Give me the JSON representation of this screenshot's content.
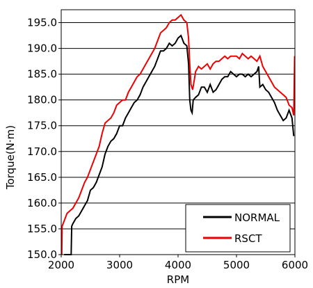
{
  "chart_data": {
    "type": "line",
    "title": "",
    "xlabel": "RPM",
    "ylabel": "Torque(N·m)",
    "xlim": [
      2000,
      6000
    ],
    "ylim": [
      150,
      197.5
    ],
    "x_ticks": [
      2000,
      3000,
      4000,
      5000,
      6000
    ],
    "y_ticks": [
      150.0,
      155.0,
      160.0,
      165.0,
      170.0,
      175.0,
      180.0,
      185.0,
      190.0,
      195.0
    ],
    "y_tick_labels": [
      "150.0",
      "155.0",
      "160.0",
      "165.0",
      "170.0",
      "175.0",
      "180.0",
      "185.0",
      "190.0",
      "195.0"
    ],
    "x_tick_labels": [
      "2000",
      "3000",
      "4000",
      "5000",
      "6000"
    ],
    "grid": "horizontal",
    "legend_position": "bottom-right",
    "series": [
      {
        "name": "NORMAL",
        "color": "#000000",
        "points": [
          [
            2050,
            150.0
          ],
          [
            2100,
            150.0
          ],
          [
            2150,
            150.0
          ],
          [
            2170,
            150.0
          ],
          [
            2180,
            155.5
          ],
          [
            2200,
            156.0
          ],
          [
            2250,
            157.0
          ],
          [
            2300,
            157.5
          ],
          [
            2350,
            158.5
          ],
          [
            2400,
            159.5
          ],
          [
            2450,
            160.5
          ],
          [
            2500,
            162.5
          ],
          [
            2550,
            163.0
          ],
          [
            2600,
            164.0
          ],
          [
            2650,
            165.5
          ],
          [
            2700,
            167.0
          ],
          [
            2750,
            169.5
          ],
          [
            2800,
            171.0
          ],
          [
            2850,
            172.0
          ],
          [
            2900,
            172.5
          ],
          [
            2950,
            173.5
          ],
          [
            3000,
            175.0
          ],
          [
            3050,
            175.0
          ],
          [
            3100,
            176.5
          ],
          [
            3150,
            177.5
          ],
          [
            3200,
            178.5
          ],
          [
            3250,
            179.5
          ],
          [
            3300,
            180.0
          ],
          [
            3350,
            181.0
          ],
          [
            3400,
            182.5
          ],
          [
            3450,
            183.5
          ],
          [
            3500,
            184.5
          ],
          [
            3550,
            185.5
          ],
          [
            3600,
            186.5
          ],
          [
            3650,
            188.0
          ],
          [
            3700,
            189.5
          ],
          [
            3750,
            189.5
          ],
          [
            3800,
            190.0
          ],
          [
            3850,
            191.0
          ],
          [
            3900,
            190.5
          ],
          [
            3950,
            191.0
          ],
          [
            4000,
            192.0
          ],
          [
            4050,
            192.5
          ],
          [
            4100,
            191.0
          ],
          [
            4150,
            190.5
          ],
          [
            4180,
            187.0
          ],
          [
            4200,
            180.0
          ],
          [
            4220,
            178.0
          ],
          [
            4240,
            177.5
          ],
          [
            4260,
            180.0
          ],
          [
            4300,
            180.5
          ],
          [
            4350,
            181.0
          ],
          [
            4400,
            182.5
          ],
          [
            4450,
            182.5
          ],
          [
            4500,
            181.5
          ],
          [
            4550,
            183.0
          ],
          [
            4600,
            181.5
          ],
          [
            4650,
            182.0
          ],
          [
            4700,
            183.0
          ],
          [
            4750,
            184.0
          ],
          [
            4800,
            184.5
          ],
          [
            4850,
            184.5
          ],
          [
            4900,
            185.5
          ],
          [
            4950,
            185.0
          ],
          [
            5000,
            184.5
          ],
          [
            5050,
            185.0
          ],
          [
            5100,
            185.0
          ],
          [
            5150,
            184.5
          ],
          [
            5200,
            185.0
          ],
          [
            5250,
            184.5
          ],
          [
            5300,
            185.0
          ],
          [
            5350,
            185.5
          ],
          [
            5380,
            186.5
          ],
          [
            5400,
            182.5
          ],
          [
            5450,
            183.0
          ],
          [
            5500,
            182.0
          ],
          [
            5550,
            181.5
          ],
          [
            5600,
            180.5
          ],
          [
            5650,
            179.5
          ],
          [
            5700,
            178.0
          ],
          [
            5750,
            177.0
          ],
          [
            5800,
            176.0
          ],
          [
            5850,
            176.5
          ],
          [
            5900,
            178.0
          ],
          [
            5950,
            176.5
          ],
          [
            5980,
            173.0
          ]
        ]
      },
      {
        "name": "RSCT",
        "color": "#ee0000",
        "points": [
          [
            2010,
            150.0
          ],
          [
            2015,
            155.5
          ],
          [
            2050,
            156.5
          ],
          [
            2100,
            158.0
          ],
          [
            2150,
            158.5
          ],
          [
            2200,
            159.0
          ],
          [
            2250,
            160.0
          ],
          [
            2300,
            161.0
          ],
          [
            2350,
            162.5
          ],
          [
            2400,
            164.0
          ],
          [
            2450,
            165.0
          ],
          [
            2500,
            166.5
          ],
          [
            2550,
            168.0
          ],
          [
            2600,
            169.5
          ],
          [
            2650,
            171.0
          ],
          [
            2700,
            173.5
          ],
          [
            2750,
            175.5
          ],
          [
            2800,
            176.0
          ],
          [
            2850,
            176.5
          ],
          [
            2900,
            177.5
          ],
          [
            2950,
            179.0
          ],
          [
            3000,
            179.5
          ],
          [
            3050,
            180.0
          ],
          [
            3100,
            180.0
          ],
          [
            3150,
            181.5
          ],
          [
            3200,
            182.5
          ],
          [
            3250,
            183.5
          ],
          [
            3300,
            184.5
          ],
          [
            3350,
            185.0
          ],
          [
            3400,
            186.0
          ],
          [
            3450,
            187.0
          ],
          [
            3500,
            188.0
          ],
          [
            3550,
            189.0
          ],
          [
            3600,
            190.0
          ],
          [
            3650,
            191.5
          ],
          [
            3700,
            193.0
          ],
          [
            3750,
            193.5
          ],
          [
            3800,
            194.0
          ],
          [
            3850,
            195.0
          ],
          [
            3900,
            195.5
          ],
          [
            3950,
            195.5
          ],
          [
            4000,
            196.0
          ],
          [
            4050,
            196.5
          ],
          [
            4100,
            195.5
          ],
          [
            4150,
            195.0
          ],
          [
            4180,
            192.0
          ],
          [
            4200,
            187.0
          ],
          [
            4220,
            183.0
          ],
          [
            4250,
            182.0
          ],
          [
            4280,
            184.0
          ],
          [
            4300,
            185.5
          ],
          [
            4350,
            186.5
          ],
          [
            4400,
            186.0
          ],
          [
            4450,
            186.5
          ],
          [
            4500,
            187.0
          ],
          [
            4550,
            186.0
          ],
          [
            4600,
            187.0
          ],
          [
            4650,
            187.5
          ],
          [
            4700,
            187.5
          ],
          [
            4750,
            188.0
          ],
          [
            4800,
            188.5
          ],
          [
            4850,
            188.0
          ],
          [
            4900,
            188.5
          ],
          [
            4950,
            188.5
          ],
          [
            5000,
            188.5
          ],
          [
            5050,
            188.0
          ],
          [
            5100,
            189.0
          ],
          [
            5150,
            188.5
          ],
          [
            5200,
            188.0
          ],
          [
            5250,
            188.5
          ],
          [
            5300,
            188.0
          ],
          [
            5350,
            187.5
          ],
          [
            5400,
            188.5
          ],
          [
            5450,
            186.5
          ],
          [
            5500,
            185.5
          ],
          [
            5550,
            184.5
          ],
          [
            5600,
            183.5
          ],
          [
            5650,
            182.5
          ],
          [
            5700,
            182.0
          ],
          [
            5750,
            181.5
          ],
          [
            5800,
            181.0
          ],
          [
            5850,
            180.5
          ],
          [
            5900,
            179.0
          ],
          [
            5950,
            178.5
          ],
          [
            5980,
            177.0
          ],
          [
            5995,
            188.5
          ]
        ]
      }
    ]
  }
}
